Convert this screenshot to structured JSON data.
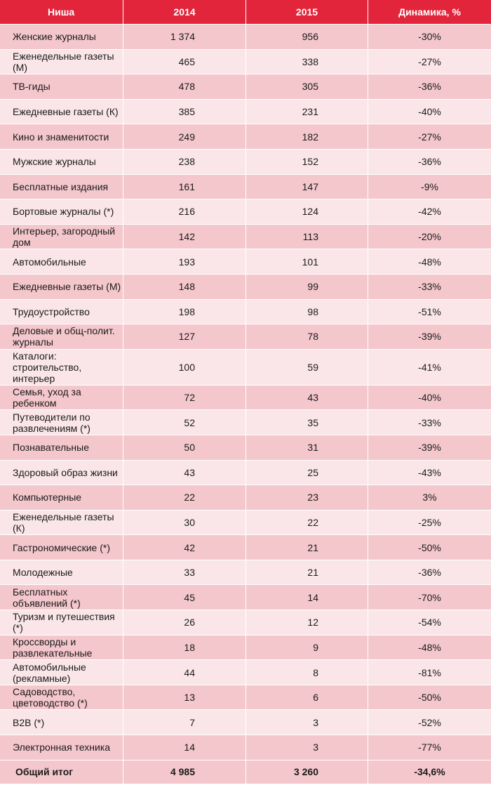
{
  "header": {
    "col_niche": "Ниша",
    "col_2014": "2014",
    "col_2015": "2015",
    "col_dynamics": "Динамика, %"
  },
  "rows": [
    {
      "niche": "Женские журналы",
      "y2014": "1 374",
      "y2015": "956",
      "dyn": "-30%"
    },
    {
      "niche": "Еженедельные газеты (М)",
      "y2014": "465",
      "y2015": "338",
      "dyn": "-27%"
    },
    {
      "niche": "ТВ-гиды",
      "y2014": "478",
      "y2015": "305",
      "dyn": "-36%"
    },
    {
      "niche": "Ежедневные газеты (К)",
      "y2014": "385",
      "y2015": "231",
      "dyn": "-40%"
    },
    {
      "niche": "Кино и знаменитости",
      "y2014": "249",
      "y2015": "182",
      "dyn": "-27%"
    },
    {
      "niche": "Мужские журналы",
      "y2014": "238",
      "y2015": "152",
      "dyn": "-36%"
    },
    {
      "niche": "Бесплатные издания",
      "y2014": "161",
      "y2015": "147",
      "dyn": "-9%"
    },
    {
      "niche": "Бортовые журналы (*)",
      "y2014": "216",
      "y2015": "124",
      "dyn": "-42%"
    },
    {
      "niche": "Интерьер, загородный дом",
      "y2014": "142",
      "y2015": "113",
      "dyn": "-20%"
    },
    {
      "niche": "Автомобильные",
      "y2014": "193",
      "y2015": "101",
      "dyn": "-48%"
    },
    {
      "niche": "Ежедневные газеты (М)",
      "y2014": "148",
      "y2015": "99",
      "dyn": "-33%"
    },
    {
      "niche": "Трудоустройство",
      "y2014": "198",
      "y2015": "98",
      "dyn": "-51%"
    },
    {
      "niche": "Деловые и общ-полит. журналы",
      "y2014": "127",
      "y2015": "78",
      "dyn": "-39%"
    },
    {
      "niche": "Каталоги: строительство, интерьер",
      "y2014": "100",
      "y2015": "59",
      "dyn": "-41%"
    },
    {
      "niche": "Семья, уход за ребенком",
      "y2014": "72",
      "y2015": "43",
      "dyn": "-40%"
    },
    {
      "niche": "Путеводители по развлечениям (*)",
      "y2014": "52",
      "y2015": "35",
      "dyn": "-33%"
    },
    {
      "niche": "Познавательные",
      "y2014": "50",
      "y2015": "31",
      "dyn": "-39%"
    },
    {
      "niche": "Здоровый образ жизни",
      "y2014": "43",
      "y2015": "25",
      "dyn": "-43%"
    },
    {
      "niche": "Компьютерные",
      "y2014": "22",
      "y2015": "23",
      "dyn": "3%"
    },
    {
      "niche": "Еженедельные газеты (К)",
      "y2014": "30",
      "y2015": "22",
      "dyn": "-25%"
    },
    {
      "niche": "Гастрономические (*)",
      "y2014": "42",
      "y2015": "21",
      "dyn": "-50%"
    },
    {
      "niche": "Молодежные",
      "y2014": "33",
      "y2015": "21",
      "dyn": "-36%"
    },
    {
      "niche": "Бесплатных объявлений (*)",
      "y2014": "45",
      "y2015": "14",
      "dyn": "-70%"
    },
    {
      "niche": "Туризм и путешествия (*)",
      "y2014": "26",
      "y2015": "12",
      "dyn": "-54%"
    },
    {
      "niche": "Кроссворды и развлекательные",
      "y2014": "18",
      "y2015": "9",
      "dyn": "-48%"
    },
    {
      "niche": "Автомобильные (рекламные)",
      "y2014": "44",
      "y2015": "8",
      "dyn": "-81%"
    },
    {
      "niche": "Садоводство, цветоводство (*)",
      "y2014": "13",
      "y2015": "6",
      "dyn": "-50%"
    },
    {
      "niche": "B2B (*)",
      "y2014": "7",
      "y2015": "3",
      "dyn": "-52%"
    },
    {
      "niche": "Электронная техника",
      "y2014": "14",
      "y2015": "3",
      "dyn": "-77%"
    }
  ],
  "total": {
    "label": "Общий итог",
    "y2014": "4 985",
    "y2015": "3 260",
    "dyn": "-34,6%"
  },
  "colors": {
    "header_bg": "#e2253a",
    "row_dark": "#f4c7cc",
    "row_light": "#fae6e8"
  }
}
